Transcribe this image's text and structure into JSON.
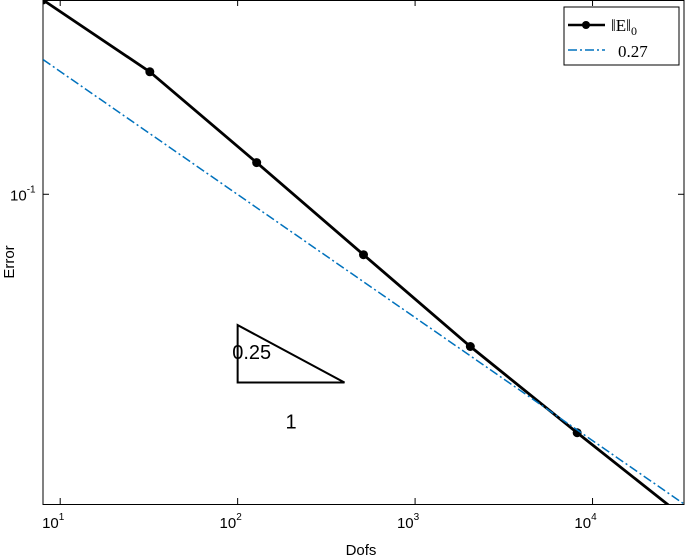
{
  "chart_data": {
    "type": "line",
    "xscale": "log",
    "yscale": "log",
    "xlabel": "Dofs",
    "ylabel": "Error",
    "xlim": [
      8,
      32768
    ],
    "ylim": [
      0.0155,
      0.322
    ],
    "grid": false,
    "legend_placement": "top-right",
    "x_ticks": [
      {
        "value": 10,
        "base": "10",
        "exp": "1"
      },
      {
        "value": 100,
        "base": "10",
        "exp": "2"
      },
      {
        "value": 1000,
        "base": "10",
        "exp": "3"
      },
      {
        "value": 10000,
        "base": "10",
        "exp": "4"
      }
    ],
    "y_ticks": [
      {
        "value": 0.1,
        "base": "10",
        "exp": "-1"
      }
    ],
    "series": [
      {
        "name": "‖E‖₀",
        "legend_main": "‖E‖",
        "legend_sub": "0",
        "color": "#000000",
        "style": "solid-marker",
        "x": [
          8,
          32,
          128,
          512,
          2048,
          8192,
          32768
        ],
        "y": [
          0.322,
          0.209,
          0.121,
          0.0695,
          0.04,
          0.0238,
          0.0143
        ]
      },
      {
        "name": "0.27",
        "color": "#0072BD",
        "style": "dash-dot",
        "x": [
          8,
          32768
        ],
        "y": [
          0.225,
          0.0155
        ]
      }
    ],
    "annotations": {
      "slope_triangle": {
        "x": [
          100,
          100,
          400
        ],
        "y": [
          0.0455,
          0.0322,
          0.0322
        ],
        "color": "#000000"
      },
      "slope_label": {
        "text": "0.25",
        "x": 120,
        "y": 0.038
      },
      "run_label": {
        "text": "1",
        "x": 200,
        "y": 0.0255
      }
    }
  }
}
